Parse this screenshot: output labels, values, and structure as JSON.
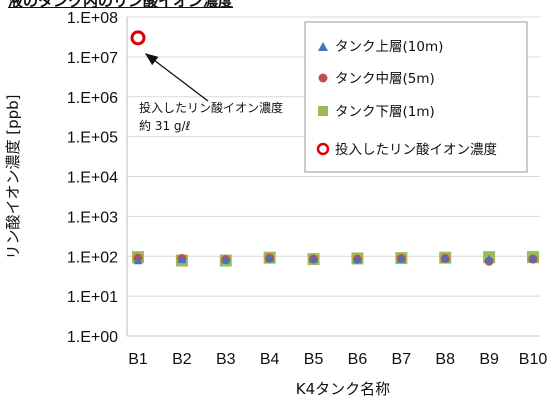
{
  "header": {
    "title_fragment": "液のタンク内のリン酸イオン濃度"
  },
  "chart_data": {
    "type": "scatter",
    "xlabel": "K4タンク名称",
    "ylabel": "リン酸イオン濃度 [ppb]",
    "yscale": "log",
    "ylim": [
      1,
      100000000
    ],
    "yticks": [
      "1.E+00",
      "1.E+01",
      "1.E+02",
      "1.E+03",
      "1.E+04",
      "1.E+05",
      "1.E+06",
      "1.E+07",
      "1.E+08"
    ],
    "categories": [
      "B1",
      "B2",
      "B3",
      "B4",
      "B5",
      "B6",
      "B7",
      "B8",
      "B9",
      "B10"
    ],
    "grid": "horizontal",
    "legend_position": "top-right",
    "series": [
      {
        "name": "タンク上層(10m)",
        "marker": "triangle",
        "color": "#4472c4",
        "values": [
          75,
          80,
          78,
          85,
          82,
          80,
          83,
          85,
          82,
          85
        ]
      },
      {
        "name": "タンク中層(5m)",
        "marker": "circle",
        "color": "#c0504d",
        "values": [
          90,
          88,
          82,
          90,
          85,
          84,
          88,
          88,
          75,
          85
        ]
      },
      {
        "name": "タンク下層(1m)",
        "marker": "square",
        "color": "#9bbb59",
        "values": [
          95,
          78,
          78,
          92,
          85,
          88,
          90,
          92,
          95,
          95
        ]
      },
      {
        "name": "投入したリン酸イオン濃度",
        "marker": "open-circle",
        "color": "#e00000",
        "category": "B1",
        "value": 30000000
      }
    ],
    "annotation": {
      "lines": [
        "投入したリン酸イオン濃度",
        "約 31 g/ℓ"
      ],
      "points_to": "B1"
    }
  }
}
